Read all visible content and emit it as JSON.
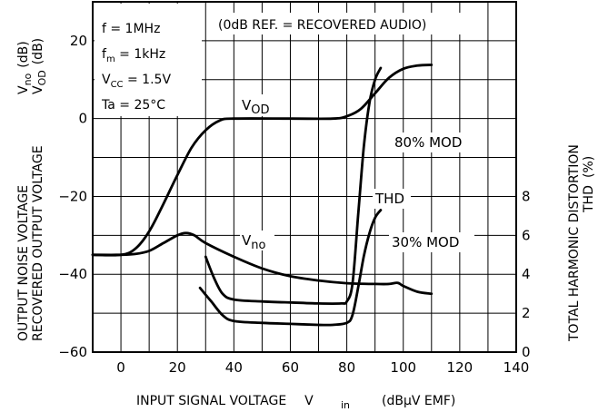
{
  "chart_data": {
    "type": "line",
    "xlabel": "INPUT SIGNAL VOLTAGE",
    "xlabel_symbol": "V",
    "xlabel_symbol_sub": "in",
    "xlabel_unit": "(dBμV EMF)",
    "xlim": [
      -10,
      140
    ],
    "x_ticks": [
      0,
      20,
      40,
      60,
      80,
      100,
      120,
      140
    ],
    "ylim_left": [
      -60,
      30
    ],
    "y_ticks_left": [
      20,
      0,
      -20,
      -40,
      -60
    ],
    "ylim_right": [
      0,
      18
    ],
    "y_ticks_right": [
      8,
      6,
      4,
      2,
      0
    ],
    "ylabel_left_line1": "OUTPUT NOISE VOLTAGE",
    "ylabel_left_line2": "RECOVERED OUTPUT VOLTAGE",
    "ylabel_left_sym1": "V",
    "ylabel_left_sym1_sub": "no",
    "ylabel_left_sym1_unit": "(dB)",
    "ylabel_left_sym2": "V",
    "ylabel_left_sym2_sub": "OD",
    "ylabel_left_sym2_unit": "(dB)",
    "ylabel_right_line1": "TOTAL HARMONIC DISTORTION",
    "ylabel_right_line2": "THD",
    "ylabel_right_line3": "(%)",
    "conditions": {
      "f": "f = 1MHz",
      "fm_base": "f",
      "fm_sub": "m",
      "fm_val": " = 1kHz",
      "vcc_base": "V",
      "vcc_sub": "CC",
      "vcc_val": " = 1.5V",
      "ta": "Ta = 25°C"
    },
    "reference_note": "(0dB REF. = RECOVERED AUDIO)",
    "grid": true,
    "series": [
      {
        "name_base": "V",
        "name_sub": "OD",
        "axis": "left",
        "x": [
          -10,
          0,
          5,
          10,
          15,
          20,
          25,
          30,
          35,
          40,
          60,
          75,
          80,
          85,
          90,
          95,
          100,
          105,
          110
        ],
        "y": [
          -35,
          -35,
          -33.5,
          -29,
          -22,
          -14.5,
          -7.5,
          -3,
          -0.5,
          0,
          0,
          0,
          0.6,
          2.5,
          6.5,
          10.5,
          12.8,
          13.6,
          13.8
        ]
      },
      {
        "name_base": "V",
        "name_sub": "no",
        "axis": "left",
        "x": [
          -10,
          0,
          5,
          10,
          15,
          20,
          23,
          26,
          30,
          40,
          50,
          60,
          70,
          80,
          90,
          95,
          98,
          100,
          105,
          110
        ],
        "y": [
          -35,
          -35,
          -34.8,
          -34,
          -32,
          -30,
          -29.4,
          -30,
          -32,
          -35.5,
          -38.5,
          -40.5,
          -41.6,
          -42.3,
          -42.5,
          -42.5,
          -42.2,
          -43,
          -44.5,
          -45
        ]
      },
      {
        "name": "80% MOD",
        "axis": "right",
        "x": [
          30,
          33,
          36,
          40,
          50,
          60,
          70,
          78,
          80,
          82,
          84,
          86,
          88,
          90,
          92
        ],
        "y": [
          4.9,
          3.8,
          3.0,
          2.7,
          2.6,
          2.55,
          2.5,
          2.5,
          2.6,
          3.5,
          7.0,
          10.5,
          12.8,
          14.0,
          14.6
        ]
      },
      {
        "name": "30% MOD",
        "axis": "right",
        "x": [
          28,
          32,
          36,
          40,
          50,
          60,
          70,
          75,
          80,
          82,
          84,
          86,
          88,
          90,
          92
        ],
        "y": [
          3.3,
          2.6,
          1.9,
          1.6,
          1.5,
          1.45,
          1.4,
          1.4,
          1.5,
          1.9,
          3.3,
          4.9,
          6.1,
          6.9,
          7.3
        ]
      }
    ],
    "annotations": {
      "thd_label": "THD",
      "mod80_label": "80%  MOD",
      "mod30_label": "30%  MOD"
    }
  }
}
